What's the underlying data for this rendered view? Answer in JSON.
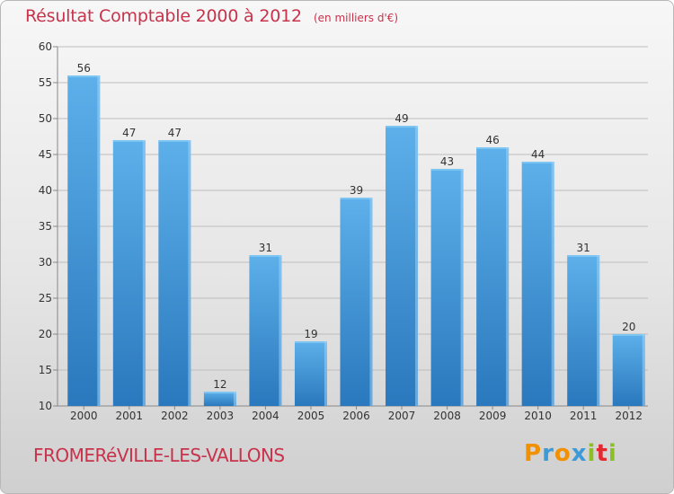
{
  "header": {
    "title": "Résultat Comptable 2000 à 2012",
    "subtitle": "(en milliers d'€)"
  },
  "footer": {
    "commune": "FROMERéVILLE-LES-VALLONS"
  },
  "logo": {
    "letters": [
      "P",
      "r",
      "o",
      "x",
      "i",
      "t",
      "i"
    ],
    "colors": [
      "#f29100",
      "#3c9bd6",
      "#f29100",
      "#3c9bd6",
      "#8cbf26",
      "#e4282f",
      "#8cbf26"
    ]
  },
  "colors": {
    "bar": "#3f93d3",
    "bar_light": "#62b3ec",
    "bar_dark": "#2a7abf",
    "grid": "#b9b9b9",
    "title": "#c8324b"
  },
  "chart_data": {
    "type": "bar",
    "title": "Résultat Comptable 2000 à 2012",
    "subtitle": "(en milliers d'€)",
    "xlabel": "",
    "ylabel": "",
    "categories": [
      "2000",
      "2001",
      "2002",
      "2003",
      "2004",
      "2005",
      "2006",
      "2007",
      "2008",
      "2009",
      "2010",
      "2011",
      "2012"
    ],
    "values": [
      56,
      47,
      47,
      12,
      31,
      19,
      39,
      49,
      43,
      46,
      44,
      31,
      20
    ],
    "ylim": [
      10,
      60
    ],
    "yticks": [
      10,
      15,
      20,
      25,
      30,
      35,
      40,
      45,
      50,
      55,
      60
    ],
    "grid": true
  }
}
